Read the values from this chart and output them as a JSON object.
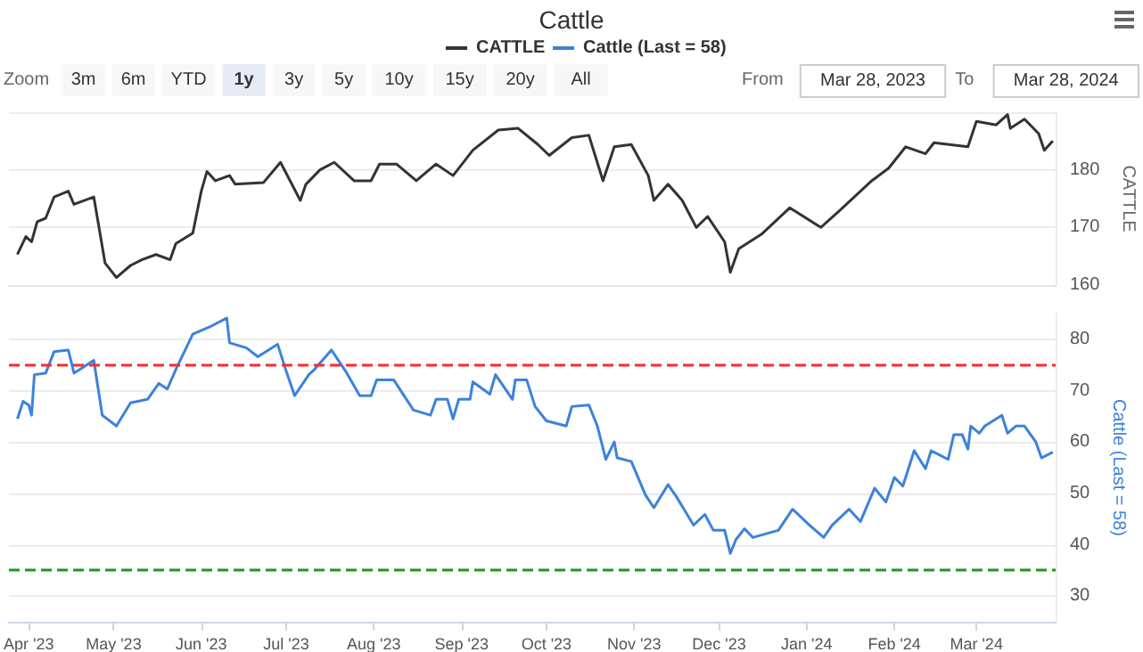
{
  "chart_data": [
    {
      "type": "line",
      "title": "Cattle",
      "ylabel": "CATTLE",
      "legend": "top",
      "grid": "y",
      "tick_labels": "y",
      "annotations": [
        "Zoom",
        "3m",
        "6m",
        "YTD",
        "1y",
        "3y",
        "5y",
        "10y",
        "15y",
        "20y",
        "All",
        "From",
        "Mar 28, 2023",
        "To",
        "Mar 28, 2024"
      ],
      "xlim": [
        "2023-03-25",
        "2024-03-29"
      ],
      "ylim": [
        160,
        190
      ],
      "yticks": [
        160,
        170,
        180,
        {
          "value": 190,
          "label": null
        }
      ],
      "series": [
        {
          "name": "CATTLE",
          "color": "#333333",
          "x": [
            "2023-03-28",
            "2023-03-31",
            "2023-04-02",
            "2023-04-04",
            "2023-04-07",
            "2023-04-10",
            "2023-04-15",
            "2023-04-17",
            "2023-04-24",
            "2023-04-28",
            "2023-05-02",
            "2023-05-07",
            "2023-05-11",
            "2023-05-16",
            "2023-05-21",
            "2023-05-23",
            "2023-05-29",
            "2023-06-01",
            "2023-06-03",
            "2023-06-06",
            "2023-06-11",
            "2023-06-13",
            "2023-06-23",
            "2023-06-29",
            "2023-07-06",
            "2023-07-08",
            "2023-07-13",
            "2023-07-18",
            "2023-07-25",
            "2023-07-31",
            "2023-08-03",
            "2023-08-09",
            "2023-08-16",
            "2023-08-23",
            "2023-08-29",
            "2023-09-05",
            "2023-09-14",
            "2023-09-21",
            "2023-09-28",
            "2023-10-02",
            "2023-10-10",
            "2023-10-16",
            "2023-10-21",
            "2023-10-25",
            "2023-10-31",
            "2023-11-06",
            "2023-11-08",
            "2023-11-13",
            "2023-11-18",
            "2023-11-23",
            "2023-11-27",
            "2023-12-03",
            "2023-12-05",
            "2023-12-08",
            "2023-12-16",
            "2023-12-26",
            "2024-01-06",
            "2024-01-13",
            "2024-01-24",
            "2024-01-30",
            "2024-02-05",
            "2024-02-12",
            "2024-02-15",
            "2024-02-27",
            "2024-03-01",
            "2024-03-08",
            "2024-03-12",
            "2024-03-13",
            "2024-03-18",
            "2024-03-23",
            "2024-03-25",
            "2024-03-28"
          ],
          "values": [
            165.3,
            168.4,
            167.5,
            171,
            171.6,
            175.3,
            176.3,
            174,
            175.3,
            163.8,
            161.3,
            163.4,
            164.4,
            165.3,
            164.4,
            167.2,
            169,
            176.3,
            179.7,
            178.1,
            179,
            177.5,
            177.8,
            181.3,
            174.7,
            177.5,
            180,
            181.3,
            178.1,
            178.1,
            181,
            181,
            178.1,
            181,
            179,
            183.4,
            186.9,
            187.2,
            184.4,
            182.5,
            185.6,
            186,
            178.1,
            184,
            184.4,
            179,
            174.7,
            177.5,
            174.7,
            170,
            171.9,
            167.5,
            162.2,
            166.3,
            168.8,
            173.4,
            170,
            173.1,
            178.1,
            180.3,
            184,
            182.8,
            184.7,
            184,
            188.4,
            187.8,
            189.6,
            187.2,
            188.8,
            186.3,
            183.4,
            185
          ]
        }
      ]
    },
    {
      "type": "line",
      "ylabel": "Cattle (Last = 58)",
      "legend": "top",
      "grid": "y",
      "xlim": [
        "2023-03-25",
        "2024-03-29"
      ],
      "xticks": [
        {
          "value": "2023-04-01",
          "label": "Apr '23"
        },
        {
          "value": "2023-05-01",
          "label": "May '23"
        },
        {
          "value": "2023-06-01",
          "label": "Jun '23"
        },
        {
          "value": "2023-07-01",
          "label": "Jul '23"
        },
        {
          "value": "2023-08-01",
          "label": "Aug '23"
        },
        {
          "value": "2023-09-01",
          "label": "Sep '23"
        },
        {
          "value": "2023-10-01",
          "label": "Oct '23"
        },
        {
          "value": "2023-11-01",
          "label": "Nov '23"
        },
        {
          "value": "2023-12-01",
          "label": "Dec '23"
        },
        {
          "value": "2024-01-01",
          "label": "Jan '24"
        },
        {
          "value": "2024-02-01",
          "label": "Feb '24"
        },
        {
          "value": "2024-03-01",
          "label": "Mar '24"
        }
      ],
      "ylim": [
        25,
        85
      ],
      "yticks": [
        30,
        40,
        50,
        60,
        70,
        80
      ],
      "ref_lines": [
        {
          "axis": "y",
          "value": 75,
          "color": "#ff2a2a",
          "line_style": "dashed"
        },
        {
          "axis": "y",
          "value": 35,
          "color": "#1a9a1a",
          "line_style": "dashed"
        }
      ],
      "series": [
        {
          "name": "Cattle (Last = 58)",
          "color": "#3c82dc",
          "x": [
            "2023-03-28",
            "2023-03-30",
            "2023-04-01",
            "2023-04-02",
            "2023-04-03",
            "2023-04-07",
            "2023-04-10",
            "2023-04-15",
            "2023-04-17",
            "2023-04-24",
            "2023-04-27",
            "2023-05-02",
            "2023-05-07",
            "2023-05-13",
            "2023-05-17",
            "2023-05-20",
            "2023-05-23",
            "2023-05-29",
            "2023-06-04",
            "2023-06-10",
            "2023-06-11",
            "2023-06-17",
            "2023-06-21",
            "2023-06-28",
            "2023-07-01",
            "2023-07-04",
            "2023-07-09",
            "2023-07-11",
            "2023-07-17",
            "2023-07-22",
            "2023-07-27",
            "2023-07-31",
            "2023-08-02",
            "2023-08-08",
            "2023-08-15",
            "2023-08-21",
            "2023-08-23",
            "2023-08-27",
            "2023-08-29",
            "2023-08-31",
            "2023-09-04",
            "2023-09-05",
            "2023-09-11",
            "2023-09-13",
            "2023-09-19",
            "2023-09-20",
            "2023-09-24",
            "2023-09-27",
            "2023-10-01",
            "2023-10-08",
            "2023-10-10",
            "2023-10-16",
            "2023-10-19",
            "2023-10-22",
            "2023-10-25",
            "2023-10-26",
            "2023-10-31",
            "2023-11-05",
            "2023-11-08",
            "2023-11-13",
            "2023-11-16",
            "2023-11-22",
            "2023-11-26",
            "2023-11-29",
            "2023-12-03",
            "2023-12-05",
            "2023-12-07",
            "2023-12-10",
            "2023-12-13",
            "2023-12-22",
            "2023-12-27",
            "2024-01-02",
            "2024-01-07",
            "2024-01-10",
            "2024-01-16",
            "2024-01-20",
            "2024-01-25",
            "2024-01-29",
            "2024-02-01",
            "2024-02-04",
            "2024-02-08",
            "2024-02-12",
            "2024-02-14",
            "2024-02-20",
            "2024-02-22",
            "2024-02-25",
            "2024-02-27",
            "2024-02-28",
            "2024-03-02",
            "2024-03-04",
            "2024-03-10",
            "2024-03-12",
            "2024-03-15",
            "2024-03-18",
            "2024-03-22",
            "2024-03-24",
            "2024-03-28"
          ],
          "values": [
            64.5,
            67.9,
            67.2,
            65.2,
            73.1,
            73.4,
            77.6,
            77.9,
            73.4,
            75.9,
            65.2,
            63.1,
            67.6,
            68.3,
            71.4,
            70.3,
            74.1,
            81,
            82.4,
            84.1,
            79.3,
            78.3,
            76.6,
            79,
            73.8,
            69,
            73.1,
            74.1,
            77.9,
            73.8,
            69,
            69,
            72.1,
            72.1,
            66.2,
            65.2,
            68.3,
            68.3,
            64.5,
            68.3,
            68.3,
            71.7,
            69.3,
            73.1,
            68.3,
            72.1,
            72.1,
            66.9,
            64.1,
            63.1,
            66.9,
            67.2,
            63.1,
            56.6,
            60,
            56.9,
            56.2,
            49.7,
            47.2,
            51.7,
            49.3,
            43.8,
            45.9,
            42.8,
            42.8,
            38.3,
            41,
            43.1,
            41.4,
            42.8,
            46.9,
            43.8,
            41.4,
            43.8,
            46.9,
            44.5,
            51,
            48.3,
            53.1,
            51.4,
            58.3,
            54.8,
            58.3,
            56.6,
            61.4,
            61.4,
            58.6,
            63.1,
            61.7,
            63.1,
            65.2,
            61.7,
            63.1,
            63.1,
            60,
            56.9,
            58
          ]
        }
      ]
    }
  ]
}
